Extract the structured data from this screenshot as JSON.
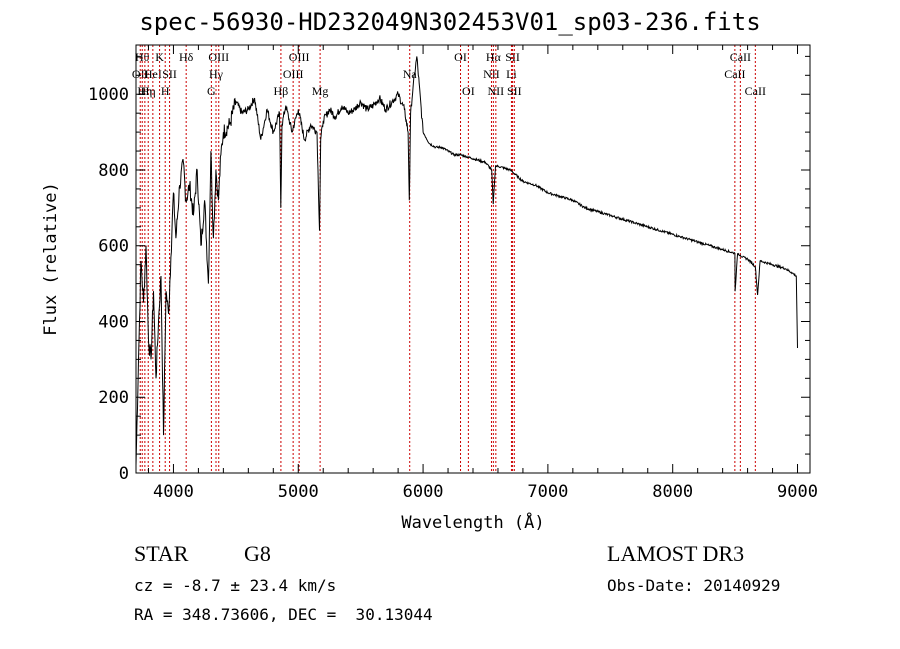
{
  "chart_data": {
    "type": "line",
    "title": "spec-56930-HD232049N302453V01_sp03-236.fits",
    "xlabel": "Wavelength (Å)",
    "ylabel": "Flux (relative)",
    "xlim": [
      3700,
      9100
    ],
    "ylim": [
      0,
      1130
    ],
    "x_ticks": [
      4000,
      5000,
      6000,
      7000,
      8000,
      9000
    ],
    "y_ticks": [
      0,
      200,
      400,
      600,
      800,
      1000
    ],
    "grid": false,
    "series": [
      {
        "name": "spectrum",
        "x": [
          3700,
          3720,
          3740,
          3760,
          3780,
          3800,
          3820,
          3840,
          3860,
          3880,
          3900,
          3920,
          3940,
          3960,
          3980,
          4000,
          4020,
          4050,
          4080,
          4100,
          4130,
          4160,
          4190,
          4220,
          4250,
          4280,
          4300,
          4320,
          4340,
          4360,
          4380,
          4400,
          4450,
          4500,
          4550,
          4600,
          4650,
          4700,
          4750,
          4800,
          4850,
          4860,
          4870,
          4900,
          4950,
          5000,
          5050,
          5100,
          5150,
          5170,
          5180,
          5200,
          5250,
          5300,
          5350,
          5400,
          5450,
          5500,
          5550,
          5600,
          5650,
          5700,
          5750,
          5800,
          5850,
          5880,
          5890,
          5900,
          5920,
          5950,
          6000,
          6050,
          6100,
          6150,
          6200,
          6250,
          6300,
          6400,
          6500,
          6550,
          6562,
          6580,
          6600,
          6700,
          6800,
          6900,
          7000,
          7100,
          7200,
          7300,
          7400,
          7500,
          7600,
          7700,
          7800,
          7900,
          8000,
          8100,
          8200,
          8300,
          8400,
          8498,
          8500,
          8520,
          8542,
          8560,
          8600,
          8662,
          8680,
          8700,
          8800,
          8900,
          8950,
          8990,
          9000
        ],
        "y": [
          20,
          300,
          560,
          450,
          600,
          350,
          300,
          480,
          250,
          400,
          520,
          100,
          480,
          420,
          570,
          740,
          620,
          760,
          820,
          720,
          760,
          680,
          800,
          600,
          720,
          500,
          850,
          620,
          800,
          720,
          840,
          900,
          920,
          980,
          950,
          960,
          990,
          880,
          960,
          900,
          950,
          700,
          920,
          970,
          900,
          960,
          880,
          920,
          900,
          640,
          880,
          930,
          960,
          940,
          970,
          950,
          960,
          980,
          960,
          970,
          990,
          960,
          980,
          1000,
          960,
          900,
          720,
          950,
          1020,
          1100,
          900,
          870,
          860,
          860,
          850,
          840,
          840,
          830,
          820,
          800,
          710,
          810,
          810,
          800,
          770,
          760,
          740,
          730,
          720,
          700,
          690,
          680,
          670,
          660,
          650,
          640,
          630,
          620,
          610,
          600,
          590,
          580,
          480,
          580,
          575,
          570,
          565,
          545,
          470,
          560,
          550,
          540,
          530,
          520,
          330
        ]
      }
    ],
    "line_markers": [
      {
        "x": 3734,
        "label": "OII",
        "row": 2
      },
      {
        "x": 3750,
        "label": "Hθ",
        "row": 1
      },
      {
        "x": 3771,
        "label": "Hη",
        "row": 3
      },
      {
        "x": 3798,
        "label": "Hη",
        "row": 3
      },
      {
        "x": 3835,
        "label": "HeI",
        "row": 2
      },
      {
        "x": 3889,
        "label": "K",
        "row": 1
      },
      {
        "x": 3934,
        "label": "H",
        "row": 3
      },
      {
        "x": 3969,
        "label": "SII",
        "row": 2
      },
      {
        "x": 4102,
        "label": "Hδ",
        "row": 1
      },
      {
        "x": 4304,
        "label": "G",
        "row": 4
      },
      {
        "x": 4341,
        "label": "Hγ",
        "row": 2
      },
      {
        "x": 4363,
        "label": "OIII",
        "row": 1
      },
      {
        "x": 4861,
        "label": "Hβ",
        "row": 4
      },
      {
        "x": 4959,
        "label": "OIII",
        "row": 2
      },
      {
        "x": 5007,
        "label": "OIII",
        "row": 1
      },
      {
        "x": 5175,
        "label": "Mg",
        "row": 4
      },
      {
        "x": 5893,
        "label": "Na",
        "row": 2
      },
      {
        "x": 6300,
        "label": "OI",
        "row": 1
      },
      {
        "x": 6363,
        "label": "OI",
        "row": 4
      },
      {
        "x": 6548,
        "label": "NII",
        "row": 2
      },
      {
        "x": 6563,
        "label": "Hα",
        "row": 1
      },
      {
        "x": 6583,
        "label": "NII",
        "row": 4
      },
      {
        "x": 6708,
        "label": "Li",
        "row": 2
      },
      {
        "x": 6717,
        "label": "SII",
        "row": 1
      },
      {
        "x": 6731,
        "label": "SII",
        "row": 4
      },
      {
        "x": 8498,
        "label": "CaII",
        "row": 2
      },
      {
        "x": 8542,
        "label": "CaII",
        "row": 1
      },
      {
        "x": 8662,
        "label": "CaII",
        "row": 4
      }
    ],
    "marker_color": "#cc0000",
    "line_color": "#000000"
  },
  "info": {
    "object_class": "STAR",
    "subclass": "G8",
    "survey": "LAMOST DR3",
    "cz": "cz = -8.7 ± 23.4 km/s",
    "obs_date": "Obs-Date: 20140929",
    "coords": "RA = 348.73606, DEC =  30.13044"
  }
}
